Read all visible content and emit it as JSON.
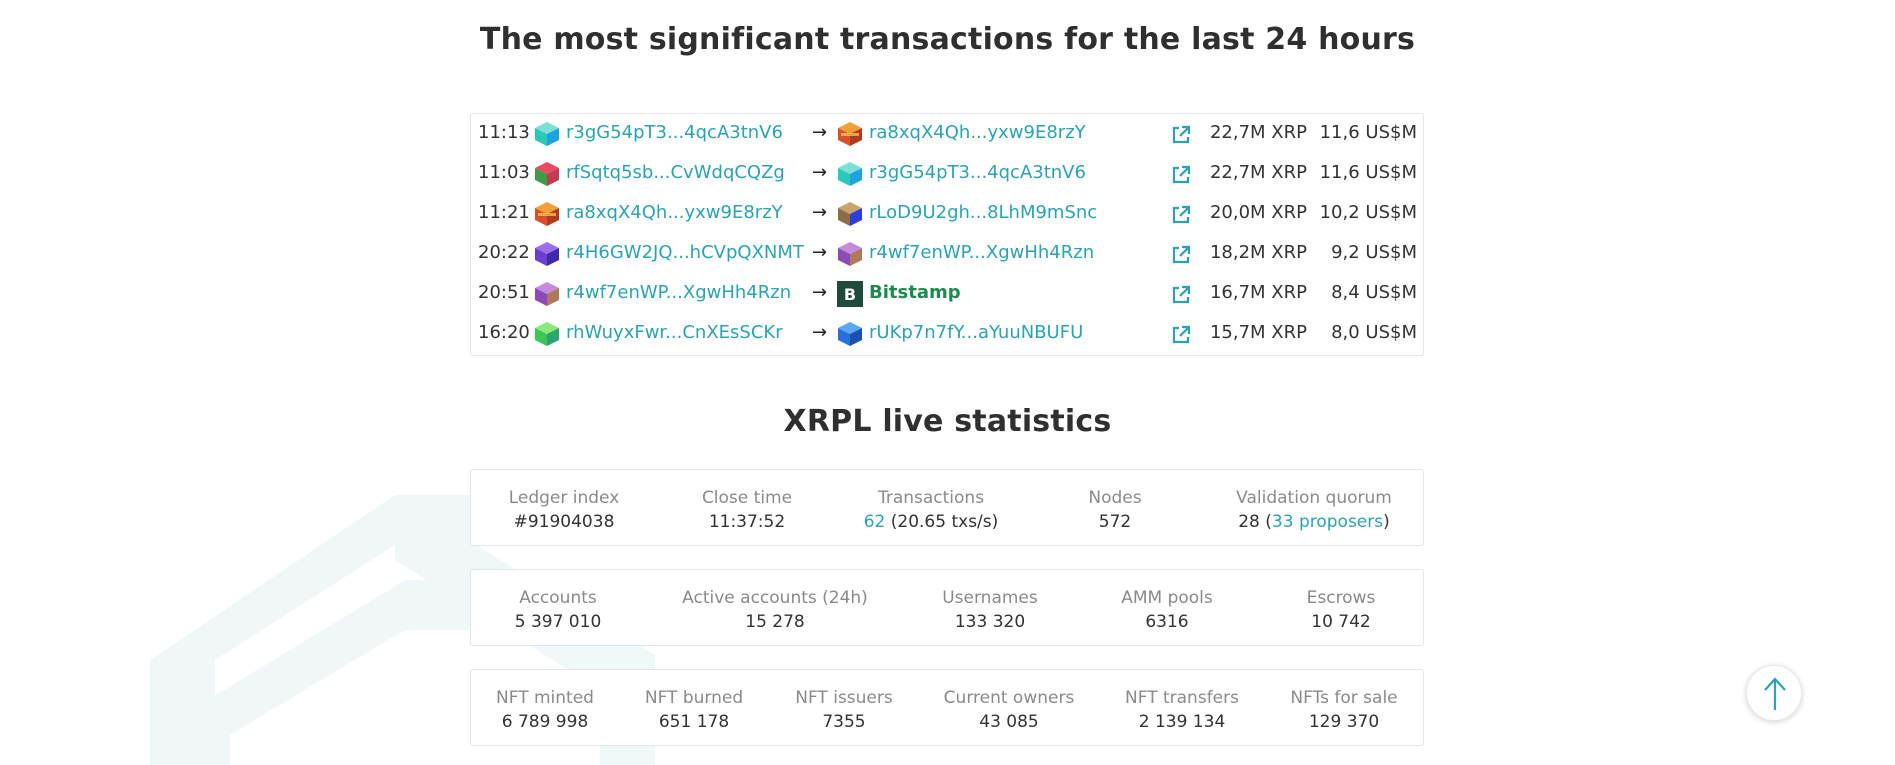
{
  "tx_section": {
    "title": "The most significant transactions for the last 24 hours",
    "rows": [
      {
        "time": "11:13",
        "from": "r3gG54pT3...4qcA3tnV6",
        "to": "ra8xqX4Qh...yxw9E8rzY",
        "amount": "22,7M XRP",
        "usd": "11,6 US$M"
      },
      {
        "time": "11:03",
        "from": "rfSqtq5sb...CvWdqCQZg",
        "to": "r3gG54pT3...4qcA3tnV6",
        "amount": "22,7M XRP",
        "usd": "11,6 US$M"
      },
      {
        "time": "11:21",
        "from": "ra8xqX4Qh...yxw9E8rzY",
        "to": "rLoD9U2gh...8LhM9mSnc",
        "amount": "20,0M XRP",
        "usd": "10,2 US$M"
      },
      {
        "time": "20:22",
        "from": "r4H6GW2JQ...hCVpQXNMT",
        "to": "r4wf7enWP...XgwHh4Rzn",
        "amount": "18,2M XRP",
        "usd": "9,2 US$M"
      },
      {
        "time": "20:51",
        "from": "r4wf7enWP...XgwHh4Rzn",
        "to": "Bitstamp",
        "amount": "16,7M XRP",
        "usd": "8,4 US$M"
      },
      {
        "time": "16:20",
        "from": "rhWuyxFwr...CnXEsSCKr",
        "to": "rUKp7n7fY...aYuuNBUFU",
        "amount": "15,7M XRP",
        "usd": "8,0 US$M"
      }
    ],
    "arrow": "→",
    "exchange_logo_letter": "B"
  },
  "stats_section": {
    "title": "XRPL live statistics",
    "row1": {
      "ledger_label": "Ledger index",
      "ledger_value": "#91904038",
      "close_label": "Close time",
      "close_value": "11:37:52",
      "tx_label": "Transactions",
      "tx_count": "62",
      "tx_rate": "(20.65 txs/s)",
      "nodes_label": "Nodes",
      "nodes_value": "572",
      "quorum_label": "Validation quorum",
      "quorum_value": "28 (",
      "quorum_link": "33 proposers",
      "quorum_close": ")"
    },
    "row2": {
      "accounts_label": "Accounts",
      "accounts_value": "5 397 010",
      "active_label": "Active accounts (24h)",
      "active_value": "15 278",
      "usernames_label": "Usernames",
      "usernames_value": "133 320",
      "amm_label": "AMM pools",
      "amm_value": "6316",
      "escrows_label": "Escrows",
      "escrows_value": "10 742"
    },
    "row3": {
      "minted_label": "NFT minted",
      "minted_value": "6 789 998",
      "burned_label": "NFT burned",
      "burned_value": "651 178",
      "issuers_label": "NFT issuers",
      "issuers_value": "7355",
      "owners_label": "Current owners",
      "owners_value": "43 085",
      "transfers_label": "NFT transfers",
      "transfers_value": "2 139 134",
      "sale_label": "NFTs for sale",
      "sale_value": "129 370"
    }
  },
  "colors": {
    "link": "#2ba3b4",
    "named_account": "#1b8a4e",
    "exchange_logo_bg": "#1e4a3c"
  },
  "icons": {
    "external": "external-link-icon",
    "scroll_top": "arrow-up-icon"
  }
}
